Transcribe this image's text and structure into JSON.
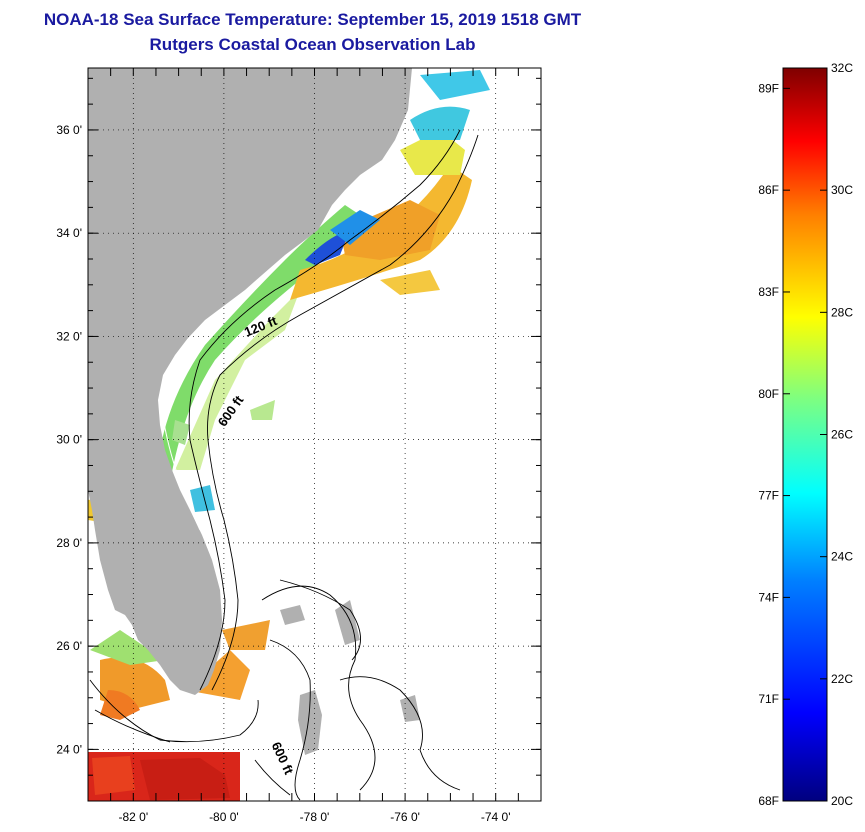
{
  "title": "NOAA-18 Sea Surface Temperature:  September 15, 2019 1518 GMT",
  "subtitle": "Rutgers Coastal Ocean Observation Lab",
  "map": {
    "lat_labels": [
      "36 0'",
      "34 0'",
      "32 0'",
      "30 0'",
      "28 0'",
      "26 0'",
      "24 0'"
    ],
    "lon_labels": [
      "-82 0'",
      "-80 0'",
      "-78 0'",
      "-76 0'",
      "-74 0'"
    ],
    "lat_values": [
      36,
      34,
      32,
      30,
      28,
      26,
      24
    ],
    "lon_values": [
      -82,
      -80,
      -78,
      -76,
      -74
    ],
    "lon_range": [
      -83,
      -73
    ],
    "lat_range": [
      23,
      37.2
    ],
    "contours": [
      {
        "label": "120 ft"
      },
      {
        "label": "600 ft"
      },
      {
        "label": "600 ft"
      }
    ],
    "land_color": "#b0b0b0"
  },
  "colorbar": {
    "fahrenheit": [
      "89F",
      "86F",
      "83F",
      "80F",
      "77F",
      "74F",
      "71F",
      "68F"
    ],
    "celsius": [
      "32C",
      "30C",
      "28C",
      "26C",
      "24C",
      "22C",
      "20C"
    ],
    "range_c": [
      20,
      32
    ],
    "colors": [
      "#00007f",
      "#0000ff",
      "#007fff",
      "#00ffff",
      "#7fff7f",
      "#ffff00",
      "#ff7f00",
      "#ff0000",
      "#7f0000"
    ]
  }
}
